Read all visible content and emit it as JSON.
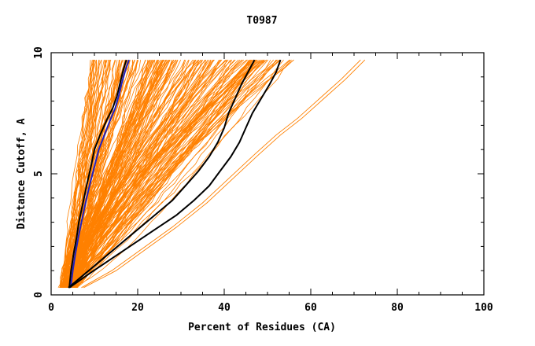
{
  "chart_data": {
    "type": "line",
    "title": "T0987",
    "xlabel": "Percent of Residues (CA)",
    "ylabel": "Distance Cutoff, A",
    "xlim": [
      0,
      100
    ],
    "ylim": [
      0,
      10
    ],
    "x_ticks": [
      "0",
      "20",
      "40",
      "60",
      "80",
      "100"
    ],
    "x_tick_values": [
      0,
      20,
      40,
      60,
      80,
      100
    ],
    "y_ticks": [
      "0",
      "5",
      "10"
    ],
    "y_tick_values": [
      0,
      5,
      10
    ],
    "grid": false,
    "colors": {
      "background_curves": "#ff8000",
      "highlight_black": "#000000",
      "highlight_blue": "#2020c0",
      "axes": "#000000"
    },
    "background_curves": {
      "description": "~200 orange model curves fanning between the steep left envelope and the spread right envelope",
      "count": 200,
      "start_y": 0.3,
      "end_y": 9.7,
      "start_x_range": [
        2,
        6
      ],
      "end_x_range": [
        9,
        56
      ]
    },
    "series": [
      {
        "name": "black-steep",
        "color": "#000000",
        "x": [
          4.2,
          4.6,
          5.2,
          5.9,
          6.4,
          7.0,
          7.6,
          8.3,
          9.2,
          10.0,
          11.3,
          12.8,
          14.2,
          15.2,
          16.0,
          16.7,
          17.4
        ],
        "y": [
          0.3,
          1.0,
          1.7,
          2.4,
          3.0,
          3.5,
          4.0,
          4.6,
          5.3,
          6.0,
          6.6,
          7.2,
          7.7,
          8.2,
          8.8,
          9.3,
          9.7
        ]
      },
      {
        "name": "blue-steep",
        "color": "#2020c0",
        "x": [
          4.5,
          5.0,
          5.6,
          6.3,
          7.0,
          7.6,
          8.2,
          9.0,
          10.0,
          11.0,
          12.3,
          13.6,
          14.8,
          15.6,
          16.4,
          17.2,
          18.0
        ],
        "y": [
          0.3,
          1.0,
          1.7,
          2.4,
          3.0,
          3.5,
          4.0,
          4.6,
          5.3,
          6.0,
          6.6,
          7.2,
          7.7,
          8.2,
          8.8,
          9.3,
          9.7
        ]
      },
      {
        "name": "black-wide-1",
        "color": "#000000",
        "x": [
          4.0,
          8.0,
          12.0,
          16.0,
          20.0,
          24.0,
          28.0,
          31.0,
          34.0,
          36.5,
          38.5,
          40.0,
          41.0,
          42.5,
          44.0,
          45.5,
          47.0
        ],
        "y": [
          0.3,
          0.9,
          1.5,
          2.1,
          2.7,
          3.3,
          3.9,
          4.5,
          5.1,
          5.7,
          6.3,
          6.9,
          7.5,
          8.1,
          8.7,
          9.2,
          9.7
        ]
      },
      {
        "name": "black-wide-2",
        "color": "#000000",
        "x": [
          4.2,
          9.0,
          14.0,
          19.0,
          24.0,
          29.0,
          33.0,
          36.5,
          39.0,
          41.5,
          43.5,
          45.0,
          46.5,
          48.5,
          50.5,
          52.0,
          53.0
        ],
        "y": [
          0.3,
          0.9,
          1.5,
          2.1,
          2.7,
          3.3,
          3.9,
          4.5,
          5.1,
          5.7,
          6.3,
          6.9,
          7.5,
          8.1,
          8.7,
          9.2,
          9.7
        ]
      },
      {
        "name": "orange-outlier",
        "color": "#ff8000",
        "x": [
          7.5,
          15.0,
          22.0,
          29.0,
          36.0,
          42.0,
          48.0,
          53.0,
          58.0,
          63.0,
          68.0,
          72.5
        ],
        "y": [
          0.3,
          1.0,
          1.9,
          2.8,
          3.8,
          4.8,
          5.8,
          6.6,
          7.3,
          8.1,
          8.9,
          9.7
        ]
      },
      {
        "name": "orange-outlier-2",
        "color": "#ff8000",
        "x": [
          7.0,
          14.0,
          21.0,
          28.0,
          35.0,
          41.0,
          47.0,
          52.0,
          57.0,
          62.0,
          67.0,
          71.5
        ],
        "y": [
          0.3,
          1.0,
          1.9,
          2.8,
          3.8,
          4.8,
          5.8,
          6.6,
          7.3,
          8.1,
          8.9,
          9.7
        ]
      }
    ]
  }
}
